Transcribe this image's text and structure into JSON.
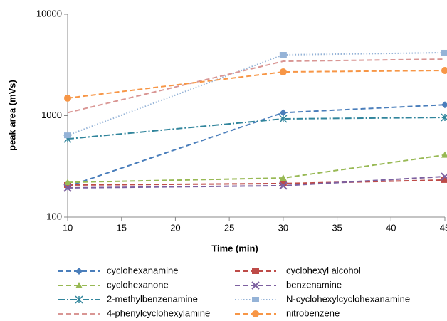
{
  "chart_data": {
    "type": "line",
    "xlabel": "Time (min)",
    "ylabel": "peak area (mVs)",
    "x": [
      10,
      30,
      45
    ],
    "xlim": [
      10,
      45
    ],
    "xticks": [
      10,
      15,
      20,
      25,
      30,
      35,
      40,
      45
    ],
    "ylim": [
      100,
      10000
    ],
    "yticks": [
      100,
      1000,
      10000
    ],
    "log_y": true,
    "series": [
      {
        "name": "cyclohexanamine",
        "color": "#4a7ebb",
        "marker": "diamond",
        "dash": "dashed",
        "values": [
          200,
          1070,
          1280
        ]
      },
      {
        "name": "cyclohexyl alcohol",
        "color": "#be4b48",
        "marker": "square",
        "dash": "dashed",
        "values": [
          207,
          214,
          232
        ]
      },
      {
        "name": "cyclohexanone",
        "color": "#98b954",
        "marker": "triangle",
        "dash": "dashed",
        "values": [
          220,
          243,
          410
        ]
      },
      {
        "name": "benzenamine",
        "color": "#7d60a0",
        "marker": "x",
        "dash": "dashed",
        "values": [
          194,
          204,
          251
        ]
      },
      {
        "name": "2-methylbenzenamine",
        "color": "#31859c",
        "marker": "asterisk",
        "dash": "dashdot",
        "values": [
          590,
          930,
          960
        ]
      },
      {
        "name": "N-cyclohexylcyclohexanamine",
        "color": "#95b3d7",
        "marker": "square",
        "dash": "dotted",
        "values": [
          640,
          3980,
          4180
        ]
      },
      {
        "name": "4-phenylcyclohexylamine",
        "color": "#d99694",
        "marker": "none",
        "dash": "dashed",
        "values": [
          1070,
          3440,
          3610
        ]
      },
      {
        "name": "nitrobenzene",
        "color": "#f79646",
        "marker": "circle",
        "dash": "dashed",
        "values": [
          1490,
          2700,
          2790
        ]
      }
    ]
  }
}
